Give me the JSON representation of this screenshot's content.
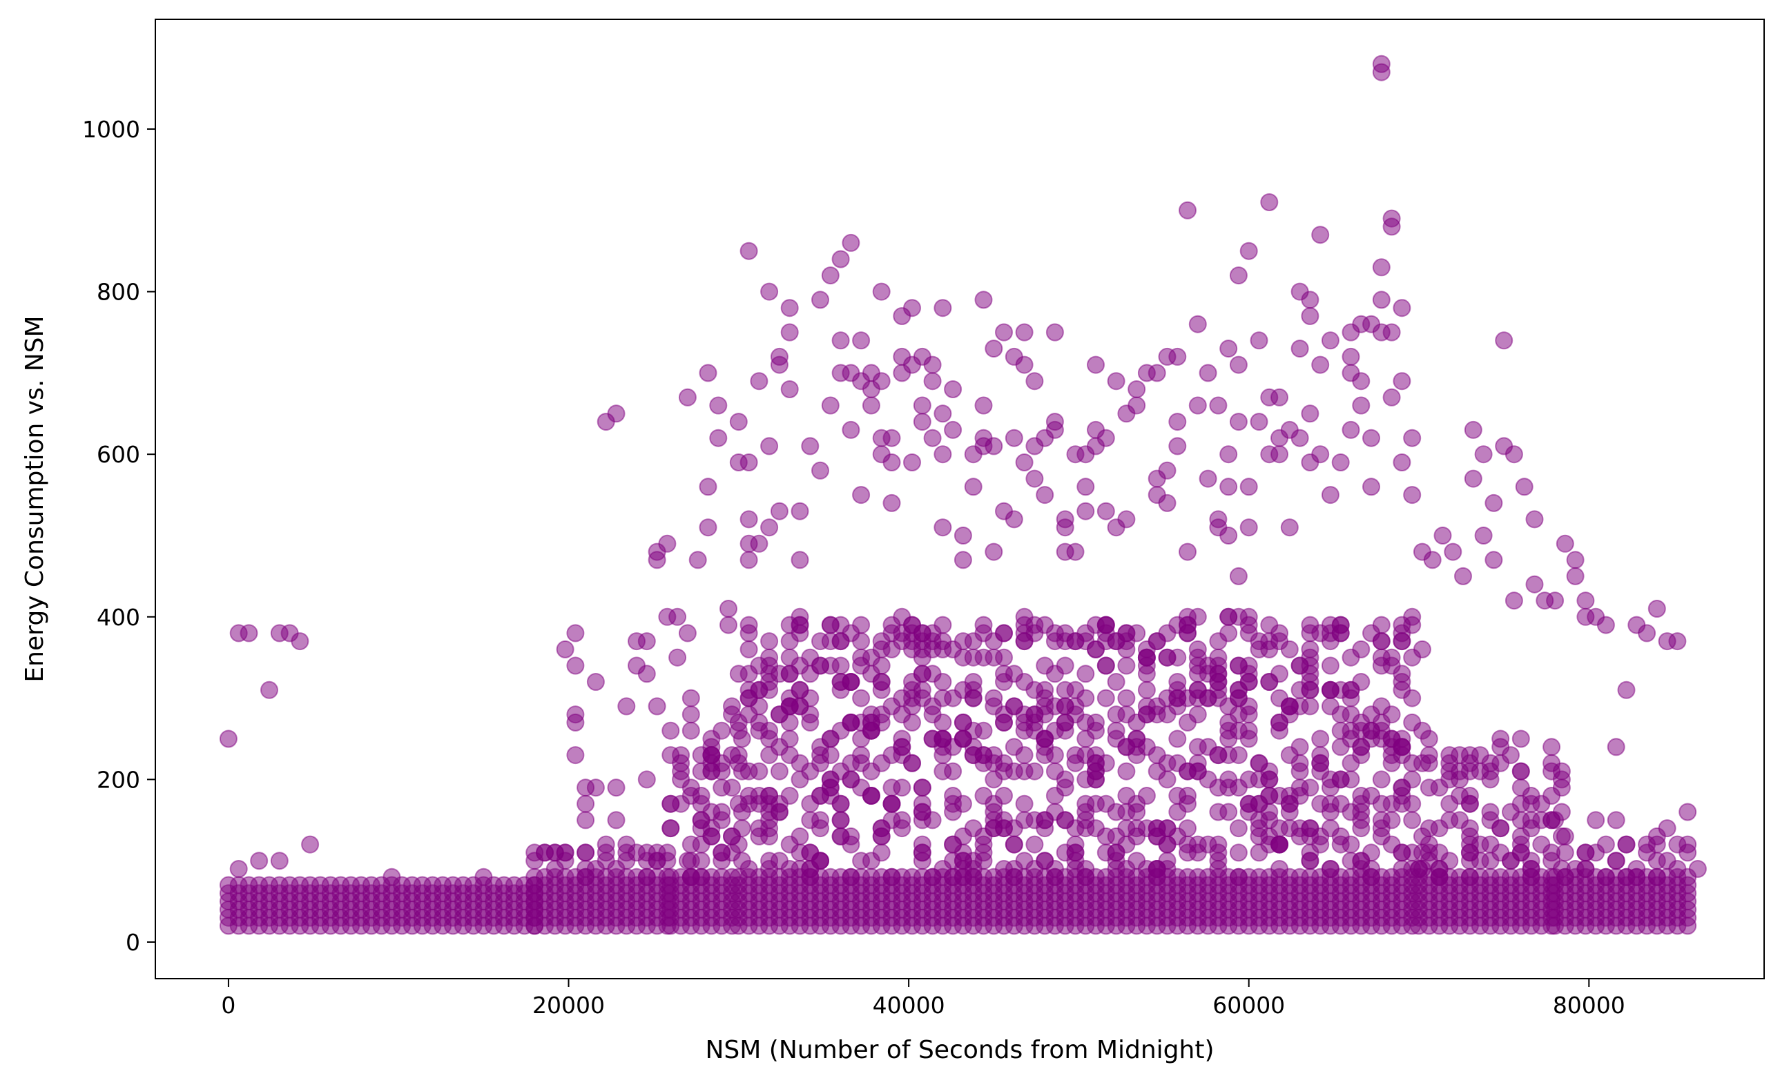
{
  "chart_data": {
    "type": "scatter",
    "title": "",
    "xlabel": "NSM (Number of Seconds from Midnight)",
    "ylabel": "Energy Consumption vs. NSM",
    "xlim": [
      -4300,
      90300
    ],
    "ylim": [
      -45,
      1135
    ],
    "x_ticks": [
      0,
      20000,
      40000,
      60000,
      80000
    ],
    "y_ticks": [
      0,
      200,
      400,
      600,
      800,
      1000
    ],
    "x_tick_labels": [
      "0",
      "20000",
      "40000",
      "60000",
      "80000"
    ],
    "y_tick_labels": [
      "0",
      "200",
      "400",
      "600",
      "800",
      "1000"
    ],
    "grid": false,
    "legend": "none",
    "marker_color": "#800080",
    "marker_alpha": 0.5,
    "points": [
      [
        0,
        250
      ],
      [
        600,
        380
      ],
      [
        1200,
        380
      ],
      [
        2400,
        310
      ],
      [
        3000,
        380
      ],
      [
        3600,
        380
      ],
      [
        4200,
        370
      ],
      [
        4800,
        120
      ],
      [
        1800,
        100
      ],
      [
        3000,
        100
      ],
      [
        600,
        90
      ],
      [
        9600,
        80
      ],
      [
        15000,
        80
      ],
      [
        18000,
        100
      ],
      [
        18600,
        110
      ],
      [
        19800,
        360
      ],
      [
        20400,
        380
      ],
      [
        20400,
        340
      ],
      [
        20400,
        280
      ],
      [
        20400,
        270
      ],
      [
        20400,
        230
      ],
      [
        21000,
        190
      ],
      [
        21000,
        170
      ],
      [
        21000,
        150
      ],
      [
        21600,
        320
      ],
      [
        21600,
        190
      ],
      [
        22200,
        640
      ],
      [
        22800,
        650
      ],
      [
        22800,
        190
      ],
      [
        22800,
        150
      ],
      [
        23400,
        290
      ],
      [
        24000,
        370
      ],
      [
        24000,
        340
      ],
      [
        24600,
        370
      ],
      [
        24600,
        330
      ],
      [
        24600,
        200
      ],
      [
        25200,
        480
      ],
      [
        25200,
        470
      ],
      [
        25200,
        290
      ],
      [
        25800,
        490
      ],
      [
        25800,
        400
      ],
      [
        26400,
        400
      ],
      [
        26400,
        350
      ],
      [
        27000,
        670
      ],
      [
        27000,
        380
      ],
      [
        27600,
        470
      ],
      [
        28200,
        700
      ],
      [
        28200,
        560
      ],
      [
        28200,
        510
      ],
      [
        28800,
        660
      ],
      [
        28800,
        620
      ],
      [
        29400,
        410
      ],
      [
        29400,
        390
      ],
      [
        30000,
        640
      ],
      [
        30000,
        590
      ],
      [
        30600,
        850
      ],
      [
        30600,
        590
      ],
      [
        30600,
        520
      ],
      [
        30600,
        490
      ],
      [
        30600,
        470
      ],
      [
        31200,
        690
      ],
      [
        31200,
        490
      ],
      [
        31800,
        800
      ],
      [
        31800,
        610
      ],
      [
        31800,
        510
      ],
      [
        32400,
        720
      ],
      [
        32400,
        710
      ],
      [
        32400,
        530
      ],
      [
        33000,
        780
      ],
      [
        33000,
        750
      ],
      [
        33000,
        680
      ],
      [
        33600,
        530
      ],
      [
        33600,
        470
      ],
      [
        34200,
        610
      ],
      [
        34800,
        790
      ],
      [
        34800,
        580
      ],
      [
        35400,
        820
      ],
      [
        35400,
        660
      ],
      [
        36000,
        840
      ],
      [
        36000,
        740
      ],
      [
        36000,
        700
      ],
      [
        36600,
        860
      ],
      [
        36600,
        700
      ],
      [
        36600,
        630
      ],
      [
        37200,
        740
      ],
      [
        37200,
        690
      ],
      [
        37200,
        550
      ],
      [
        37800,
        700
      ],
      [
        37800,
        680
      ],
      [
        37800,
        660
      ],
      [
        38400,
        800
      ],
      [
        38400,
        690
      ],
      [
        38400,
        620
      ],
      [
        38400,
        600
      ],
      [
        39000,
        620
      ],
      [
        39000,
        590
      ],
      [
        39000,
        540
      ],
      [
        39600,
        770
      ],
      [
        39600,
        720
      ],
      [
        39600,
        700
      ],
      [
        40200,
        780
      ],
      [
        40200,
        710
      ],
      [
        40200,
        590
      ],
      [
        40800,
        720
      ],
      [
        40800,
        660
      ],
      [
        40800,
        640
      ],
      [
        41400,
        710
      ],
      [
        41400,
        690
      ],
      [
        41400,
        620
      ],
      [
        42000,
        780
      ],
      [
        42000,
        650
      ],
      [
        42000,
        600
      ],
      [
        42000,
        510
      ],
      [
        42600,
        680
      ],
      [
        42600,
        630
      ],
      [
        43200,
        500
      ],
      [
        43200,
        470
      ],
      [
        43800,
        600
      ],
      [
        43800,
        560
      ],
      [
        44400,
        790
      ],
      [
        44400,
        660
      ],
      [
        44400,
        620
      ],
      [
        44400,
        610
      ],
      [
        45000,
        730
      ],
      [
        45000,
        610
      ],
      [
        45000,
        480
      ],
      [
        45600,
        750
      ],
      [
        45600,
        530
      ],
      [
        46200,
        720
      ],
      [
        46200,
        620
      ],
      [
        46200,
        520
      ],
      [
        46800,
        750
      ],
      [
        46800,
        710
      ],
      [
        46800,
        590
      ],
      [
        47400,
        690
      ],
      [
        47400,
        610
      ],
      [
        47400,
        570
      ],
      [
        48000,
        620
      ],
      [
        48000,
        550
      ],
      [
        48600,
        750
      ],
      [
        48600,
        640
      ],
      [
        48600,
        630
      ],
      [
        49200,
        520
      ],
      [
        49200,
        510
      ],
      [
        49200,
        480
      ],
      [
        49800,
        600
      ],
      [
        49800,
        480
      ],
      [
        50400,
        600
      ],
      [
        50400,
        560
      ],
      [
        50400,
        530
      ],
      [
        51000,
        710
      ],
      [
        51000,
        630
      ],
      [
        51000,
        610
      ],
      [
        51600,
        620
      ],
      [
        51600,
        530
      ],
      [
        52200,
        690
      ],
      [
        52200,
        510
      ],
      [
        52800,
        650
      ],
      [
        52800,
        520
      ],
      [
        53400,
        680
      ],
      [
        53400,
        660
      ],
      [
        54000,
        700
      ],
      [
        54600,
        700
      ],
      [
        54600,
        570
      ],
      [
        54600,
        550
      ],
      [
        55200,
        720
      ],
      [
        55200,
        580
      ],
      [
        55200,
        540
      ],
      [
        55800,
        720
      ],
      [
        55800,
        640
      ],
      [
        55800,
        610
      ],
      [
        56400,
        900
      ],
      [
        56400,
        480
      ],
      [
        57000,
        760
      ],
      [
        57000,
        660
      ],
      [
        57600,
        700
      ],
      [
        57600,
        570
      ],
      [
        58200,
        660
      ],
      [
        58200,
        520
      ],
      [
        58200,
        510
      ],
      [
        58800,
        730
      ],
      [
        58800,
        600
      ],
      [
        58800,
        560
      ],
      [
        58800,
        500
      ],
      [
        59400,
        710
      ],
      [
        59400,
        640
      ],
      [
        59400,
        450
      ],
      [
        60000,
        850
      ],
      [
        60000,
        560
      ],
      [
        60000,
        510
      ],
      [
        59400,
        820
      ],
      [
        60600,
        740
      ],
      [
        60600,
        640
      ],
      [
        61200,
        910
      ],
      [
        61200,
        670
      ],
      [
        61200,
        600
      ],
      [
        61800,
        670
      ],
      [
        61800,
        620
      ],
      [
        61800,
        600
      ],
      [
        62400,
        630
      ],
      [
        62400,
        510
      ],
      [
        63000,
        800
      ],
      [
        63000,
        730
      ],
      [
        63000,
        620
      ],
      [
        63600,
        790
      ],
      [
        63600,
        770
      ],
      [
        63600,
        650
      ],
      [
        63600,
        590
      ],
      [
        64200,
        870
      ],
      [
        64200,
        710
      ],
      [
        64200,
        600
      ],
      [
        64800,
        740
      ],
      [
        64800,
        550
      ],
      [
        65400,
        590
      ],
      [
        66000,
        750
      ],
      [
        66000,
        720
      ],
      [
        66000,
        700
      ],
      [
        66000,
        630
      ],
      [
        66600,
        760
      ],
      [
        66600,
        690
      ],
      [
        66600,
        660
      ],
      [
        67200,
        760
      ],
      [
        67200,
        620
      ],
      [
        67200,
        560
      ],
      [
        67800,
        1080
      ],
      [
        67800,
        1070
      ],
      [
        67800,
        830
      ],
      [
        67800,
        790
      ],
      [
        67800,
        750
      ],
      [
        68400,
        890
      ],
      [
        68400,
        880
      ],
      [
        68400,
        750
      ],
      [
        68400,
        670
      ],
      [
        69000,
        780
      ],
      [
        69000,
        690
      ],
      [
        69000,
        590
      ],
      [
        69600,
        620
      ],
      [
        69600,
        550
      ],
      [
        70200,
        480
      ],
      [
        70800,
        470
      ],
      [
        71400,
        500
      ],
      [
        72000,
        480
      ],
      [
        72600,
        450
      ],
      [
        73200,
        630
      ],
      [
        73200,
        570
      ],
      [
        73800,
        600
      ],
      [
        73800,
        500
      ],
      [
        74400,
        540
      ],
      [
        74400,
        470
      ],
      [
        75000,
        740
      ],
      [
        75000,
        610
      ],
      [
        75600,
        600
      ],
      [
        75600,
        420
      ],
      [
        76200,
        560
      ],
      [
        76800,
        520
      ],
      [
        76800,
        440
      ],
      [
        77400,
        420
      ],
      [
        78000,
        420
      ],
      [
        78600,
        490
      ],
      [
        79200,
        470
      ],
      [
        79200,
        450
      ],
      [
        79800,
        420
      ],
      [
        79800,
        400
      ],
      [
        80400,
        400
      ],
      [
        81000,
        390
      ],
      [
        81600,
        240
      ],
      [
        82200,
        310
      ],
      [
        82800,
        390
      ],
      [
        83400,
        380
      ],
      [
        84000,
        410
      ],
      [
        84600,
        370
      ],
      [
        84600,
        140
      ],
      [
        85200,
        370
      ],
      [
        85800,
        160
      ],
      [
        84000,
        130
      ],
      [
        82800,
        90
      ],
      [
        80400,
        150
      ],
      [
        81600,
        150
      ],
      [
        78000,
        150
      ],
      [
        24600,
        80
      ],
      [
        27000,
        100
      ]
    ],
    "dense_bands": [
      {
        "x_range": [
          0,
          18000
        ],
        "y_range": [
          20,
          75
        ]
      },
      {
        "x_range": [
          18000,
          26000
        ],
        "y_range": [
          20,
          120
        ]
      },
      {
        "x_range": [
          26000,
          30000
        ],
        "y_range": [
          20,
          300
        ]
      },
      {
        "x_range": [
          30000,
          70000
        ],
        "y_range": [
          20,
          400
        ]
      },
      {
        "x_range": [
          70000,
          78000
        ],
        "y_range": [
          20,
          250
        ]
      },
      {
        "x_range": [
          78000,
          85800
        ],
        "y_range": [
          20,
          130
        ]
      }
    ]
  }
}
